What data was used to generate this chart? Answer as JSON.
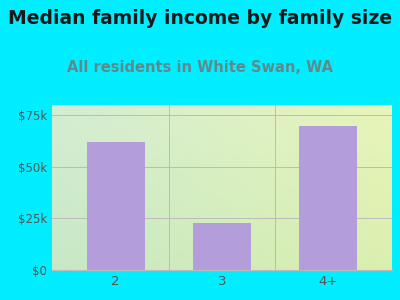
{
  "title": "Median family income by family size",
  "subtitle": "All residents in White Swan, WA",
  "categories": [
    "2",
    "3",
    "4+"
  ],
  "values": [
    62000,
    23000,
    70000
  ],
  "bar_color": "#b39ddb",
  "background_outer": "#00eeff",
  "background_inner_left": "#d4ecd4",
  "background_inner_right": "#eef5e0",
  "title_fontsize": 13.5,
  "subtitle_fontsize": 10.5,
  "ylabel_ticks": [
    "$0",
    "$25k",
    "$50k",
    "$75k"
  ],
  "ytick_values": [
    0,
    25000,
    50000,
    75000
  ],
  "ylim": [
    0,
    80000
  ],
  "tick_color": "#555555",
  "title_color": "#1a1a1a",
  "subtitle_color": "#5f8a8b",
  "grid_color": "#bbbbbb"
}
